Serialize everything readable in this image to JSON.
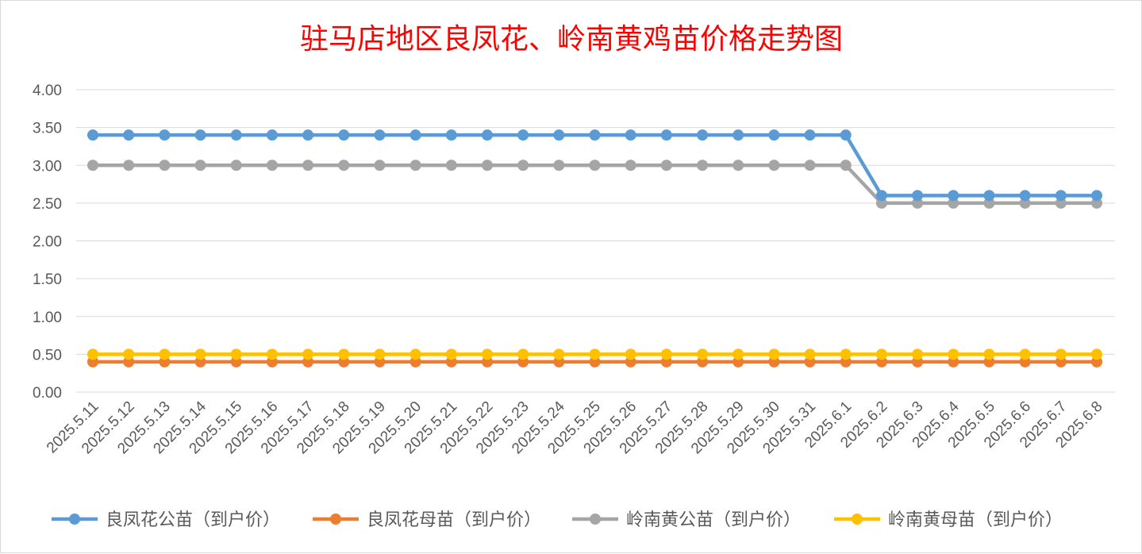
{
  "chart_data": {
    "type": "line",
    "title": "驻马店地区良凤花、岭南黄鸡苗价格走势图",
    "xlabel": "",
    "ylabel": "",
    "ylim": [
      0,
      4
    ],
    "yticks": [
      "0.00",
      "0.50",
      "1.00",
      "1.50",
      "2.00",
      "2.50",
      "3.00",
      "3.50",
      "4.00"
    ],
    "ytick_values": [
      0,
      0.5,
      1,
      1.5,
      2,
      2.5,
      3,
      3.5,
      4
    ],
    "grid": true,
    "legend_position": "bottom",
    "categories": [
      "2025.5.11",
      "2025.5.12",
      "2025.5.13",
      "2025.5.14",
      "2025.5.15",
      "2025.5.16",
      "2025.5.17",
      "2025.5.18",
      "2025.5.19",
      "2025.5.20",
      "2025.5.21",
      "2025.5.22",
      "2025.5.23",
      "2025.5.24",
      "2025.5.25",
      "2025.5.26",
      "2025.5.27",
      "2025.5.28",
      "2025.5.29",
      "2025.5.30",
      "2025.5.31",
      "2025.6.1",
      "2025.6.2",
      "2025.6.3",
      "2025.6.4",
      "2025.6.5",
      "2025.6.6",
      "2025.6.7",
      "2025.6.8"
    ],
    "series": [
      {
        "name": "良凤花公苗（到户价）",
        "color": "#5b9bd5",
        "values": [
          3.4,
          3.4,
          3.4,
          3.4,
          3.4,
          3.4,
          3.4,
          3.4,
          3.4,
          3.4,
          3.4,
          3.4,
          3.4,
          3.4,
          3.4,
          3.4,
          3.4,
          3.4,
          3.4,
          3.4,
          3.4,
          3.4,
          2.6,
          2.6,
          2.6,
          2.6,
          2.6,
          2.6,
          2.6
        ]
      },
      {
        "name": "良凤花母苗（到户价）",
        "color": "#ed7d31",
        "values": [
          0.4,
          0.4,
          0.4,
          0.4,
          0.4,
          0.4,
          0.4,
          0.4,
          0.4,
          0.4,
          0.4,
          0.4,
          0.4,
          0.4,
          0.4,
          0.4,
          0.4,
          0.4,
          0.4,
          0.4,
          0.4,
          0.4,
          0.4,
          0.4,
          0.4,
          0.4,
          0.4,
          0.4,
          0.4
        ]
      },
      {
        "name": "岭南黄公苗（到户价）",
        "color": "#a5a5a5",
        "values": [
          3.0,
          3.0,
          3.0,
          3.0,
          3.0,
          3.0,
          3.0,
          3.0,
          3.0,
          3.0,
          3.0,
          3.0,
          3.0,
          3.0,
          3.0,
          3.0,
          3.0,
          3.0,
          3.0,
          3.0,
          3.0,
          3.0,
          2.5,
          2.5,
          2.5,
          2.5,
          2.5,
          2.5,
          2.5
        ]
      },
      {
        "name": "岭南黄母苗（到户价）",
        "color": "#ffc000",
        "values": [
          0.5,
          0.5,
          0.5,
          0.5,
          0.5,
          0.5,
          0.5,
          0.5,
          0.5,
          0.5,
          0.5,
          0.5,
          0.5,
          0.5,
          0.5,
          0.5,
          0.5,
          0.5,
          0.5,
          0.5,
          0.5,
          0.5,
          0.5,
          0.5,
          0.5,
          0.5,
          0.5,
          0.5,
          0.5
        ]
      }
    ]
  },
  "colors": {
    "title": "#ff0000",
    "axis_text": "#595959",
    "gridline": "#d9d9d9",
    "background": "#ffffff"
  }
}
